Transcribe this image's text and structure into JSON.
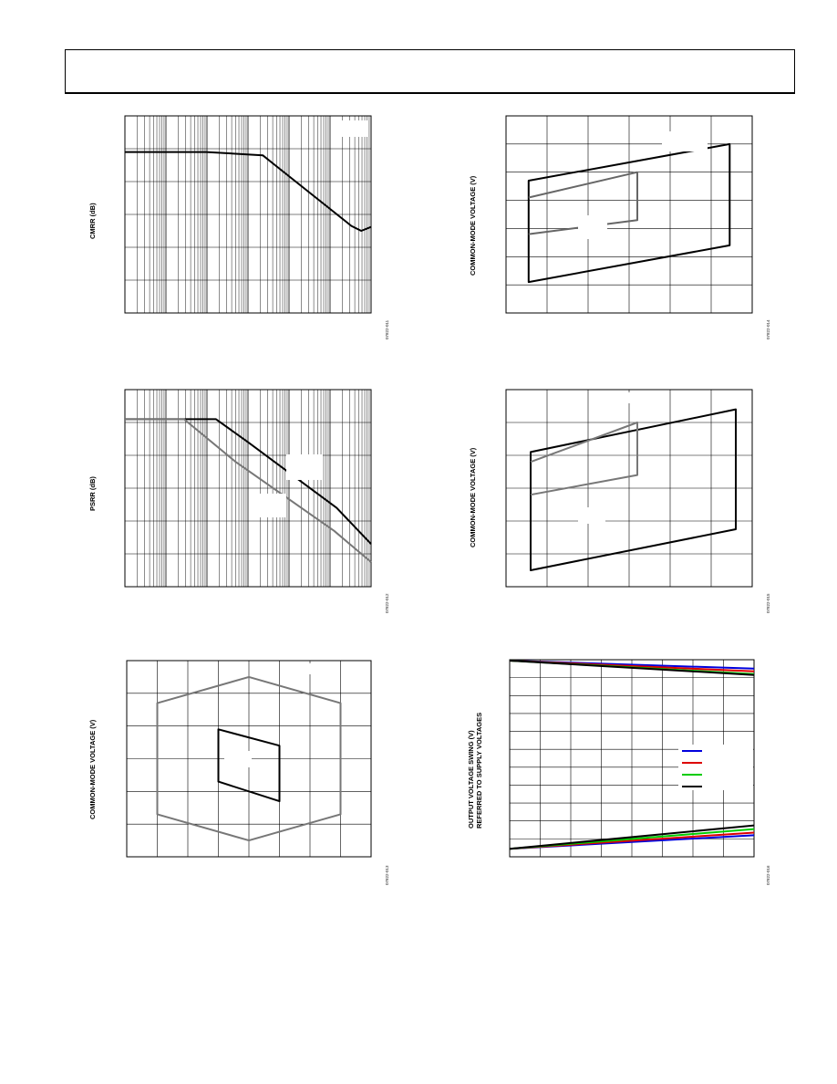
{
  "charts": [
    {
      "id": "cmrr",
      "ylabel": "CMRR (dB)",
      "fig_id": "07822-011",
      "chart_data": {
        "type": "line",
        "title": "",
        "xlabel": "",
        "ylabel": "CMRR (dB)",
        "xscale": "log",
        "grid": true,
        "vdivs": 6,
        "log_decades": 6,
        "legend_box": "top-right",
        "series": [
          {
            "color": "#000000",
            "points": [
              [
                0.0,
                1.1
              ],
              [
                0.33,
                1.1
              ],
              [
                0.56,
                1.2
              ],
              [
                0.61,
                1.5
              ],
              [
                0.92,
                3.35
              ],
              [
                0.96,
                3.5
              ],
              [
                1.0,
                3.38
              ]
            ]
          }
        ]
      }
    },
    {
      "id": "cm_range_1",
      "ylabel": "COMMON-MODE VOLTAGE (V)",
      "fig_id": "07822-014",
      "chart_data": {
        "type": "line",
        "title": "",
        "xlabel": "",
        "ylabel": "COMMON-MODE VOLTAGE (V)",
        "grid": true,
        "hdivs": 6,
        "vdivs": 7,
        "series": [
          {
            "color": "#000000",
            "closed": true,
            "points": [
              [
                0.55,
                1.1
              ],
              [
                5.45,
                2.4
              ],
              [
                5.45,
                6.0
              ],
              [
                0.55,
                4.7
              ]
            ]
          },
          {
            "color": "#666666",
            "closed": false,
            "points": [
              [
                0.55,
                2.8
              ],
              [
                3.2,
                3.3
              ],
              [
                3.2,
                5.0
              ],
              [
                0.55,
                4.1
              ]
            ]
          }
        ]
      }
    },
    {
      "id": "psrr",
      "ylabel": "PSRR (dB)",
      "fig_id": "07822-012",
      "chart_data": {
        "type": "line",
        "title": "",
        "xlabel": "",
        "ylabel": "PSRR (dB)",
        "xscale": "log",
        "grid": true,
        "vdivs": 6,
        "log_decades": 6,
        "series": [
          {
            "color": "#000000",
            "points": [
              [
                0.0,
                0.9
              ],
              [
                0.37,
                0.9
              ],
              [
                0.5,
                1.6
              ],
              [
                0.86,
                3.6
              ],
              [
                1.0,
                4.7
              ]
            ]
          },
          {
            "color": "#777777",
            "points": [
              [
                0.0,
                0.9
              ],
              [
                0.24,
                0.9
              ],
              [
                0.45,
                2.2
              ],
              [
                0.85,
                4.3
              ],
              [
                1.0,
                5.25
              ]
            ]
          }
        ]
      }
    },
    {
      "id": "cm_range_2",
      "ylabel": "COMMON-MODE VOLTAGE (V)",
      "fig_id": "07822-015",
      "chart_data": {
        "type": "line",
        "title": "",
        "xlabel": "",
        "ylabel": "COMMON-MODE VOLTAGE (V)",
        "grid": true,
        "hdivs": 6,
        "vdivs": 6,
        "series": [
          {
            "color": "#000000",
            "closed": true,
            "points": [
              [
                0.6,
                0.5
              ],
              [
                5.6,
                1.75
              ],
              [
                5.6,
                5.4
              ],
              [
                0.6,
                4.1
              ]
            ]
          },
          {
            "color": "#777777",
            "closed": false,
            "points": [
              [
                0.6,
                2.8
              ],
              [
                3.2,
                3.4
              ],
              [
                3.2,
                5.0
              ],
              [
                0.6,
                3.8
              ]
            ]
          }
        ]
      }
    },
    {
      "id": "cm_range_3",
      "ylabel": "COMMON-MODE VOLTAGE (V)",
      "fig_id": "07822-013",
      "chart_data": {
        "type": "line",
        "title": "",
        "xlabel": "",
        "ylabel": "COMMON-MODE VOLTAGE (V)",
        "grid": true,
        "hdivs": 8,
        "vdivs": 6,
        "series": [
          {
            "color": "#777777",
            "closed": true,
            "points": [
              [
                1.0,
                1.3
              ],
              [
                4.0,
                0.5
              ],
              [
                7.0,
                1.3
              ],
              [
                7.0,
                4.7
              ],
              [
                4.0,
                5.5
              ],
              [
                1.0,
                4.7
              ]
            ]
          },
          {
            "color": "#000000",
            "closed": true,
            "points": [
              [
                3.0,
                3.9
              ],
              [
                5.0,
                3.4
              ],
              [
                5.0,
                1.7
              ],
              [
                3.0,
                2.3
              ]
            ]
          }
        ]
      }
    },
    {
      "id": "output_swing",
      "ylabel": "OUTPUT VOLTAGE SWING (V)\nREFERRED TO SUPPLY VOLTAGES",
      "fig_id": "07822-016",
      "chart_data": {
        "type": "line",
        "title": "",
        "xlabel": "",
        "ylabel": "OUTPUT VOLTAGE SWING (V) REFERRED TO SUPPLY VOLTAGES",
        "grid": true,
        "hdivs": 8,
        "vdivs": 11,
        "legend_placement": "right",
        "series": [
          {
            "color": "#0000dd",
            "points": [
              [
                0,
                10.95
              ],
              [
                8,
                10.5
              ]
            ]
          },
          {
            "color": "#dd0000",
            "points": [
              [
                0,
                10.95
              ],
              [
                8,
                10.35
              ]
            ]
          },
          {
            "color": "#00cc00",
            "points": [
              [
                0,
                10.95
              ],
              [
                8,
                10.2
              ]
            ]
          },
          {
            "color": "#000000",
            "points": [
              [
                0,
                10.95
              ],
              [
                8,
                10.15
              ]
            ]
          },
          {
            "color": "#0000dd",
            "points": [
              [
                0,
                0.45
              ],
              [
                8,
                1.2
              ]
            ]
          },
          {
            "color": "#dd0000",
            "points": [
              [
                0,
                0.45
              ],
              [
                8,
                1.35
              ]
            ]
          },
          {
            "color": "#00cc00",
            "points": [
              [
                0,
                0.45
              ],
              [
                8,
                1.55
              ]
            ]
          },
          {
            "color": "#000000",
            "points": [
              [
                0,
                0.45
              ],
              [
                8,
                1.75
              ]
            ]
          }
        ]
      }
    }
  ]
}
